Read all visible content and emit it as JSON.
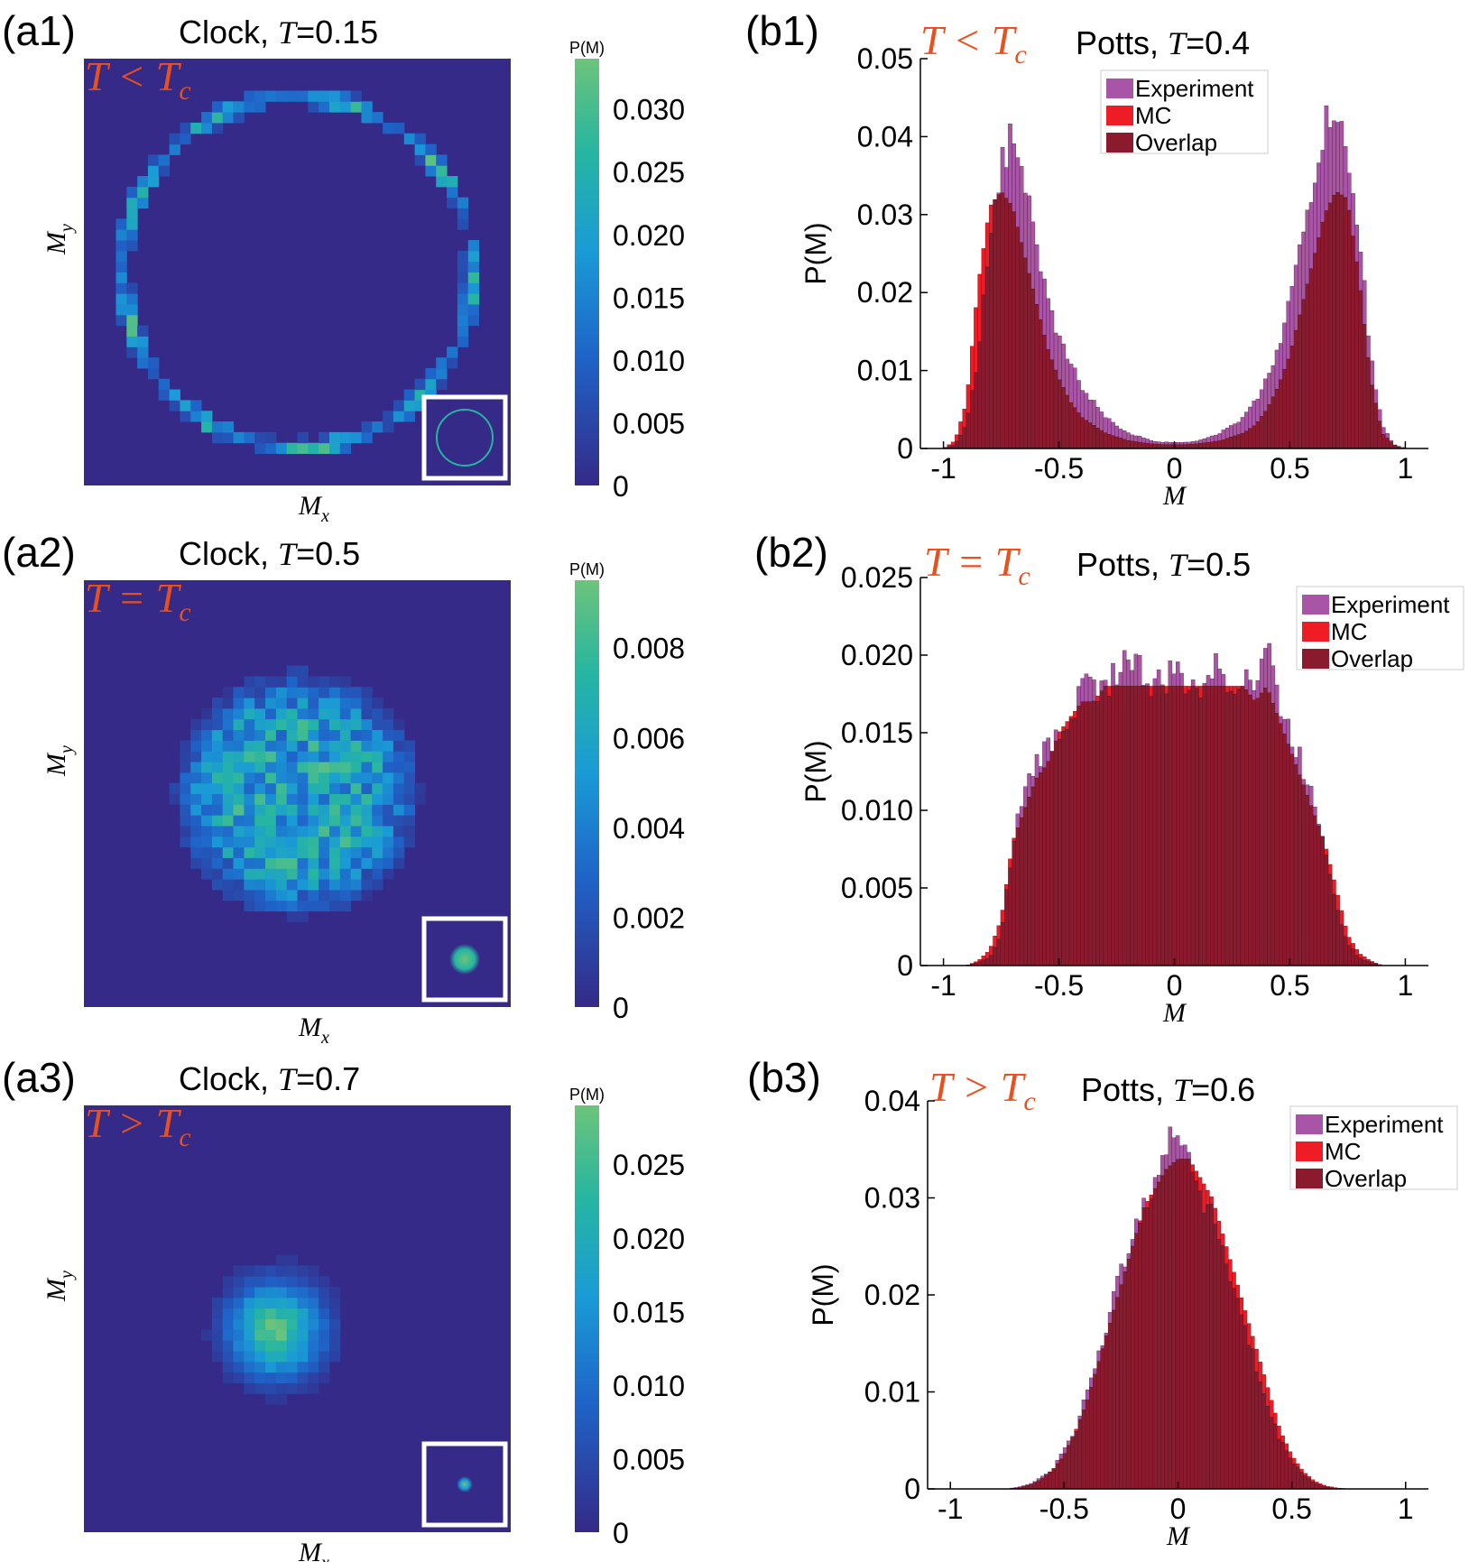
{
  "colormap": [
    "#352a87",
    "#1f63c8",
    "#1a9bd6",
    "#26b5a2",
    "#6cc47a"
  ],
  "series_colors": {
    "Experiment": "#a855a7",
    "MC": "#ee1c25",
    "Overlap": "#8b1a2e"
  },
  "heatmap_panels": [
    {
      "panel_label": "(a1)",
      "title_prefix": "Clock,",
      "title_var": "T",
      "title_value": "=0.15",
      "regime": "T < T",
      "regime_sub": "c",
      "xlabel": "M",
      "xlabel_sub": "x",
      "ylabel": "M",
      "ylabel_sub": "y",
      "colorbar_label": "P(M)",
      "colorbar_ticks": [
        "0",
        "0.005",
        "0.010",
        "0.015",
        "0.020",
        "0.025",
        "0.030"
      ],
      "colorbar_max": 0.034,
      "inset": "ring",
      "chart_data": {
        "type": "heatmap",
        "distribution": "ring",
        "description_values": {
          "max": 0.034
        }
      }
    },
    {
      "panel_label": "(a2)",
      "title_prefix": "Clock,",
      "title_var": "T",
      "title_value": "=0.5",
      "regime": "T = T",
      "regime_sub": "c",
      "xlabel": "M",
      "xlabel_sub": "x",
      "ylabel": "M",
      "ylabel_sub": "y",
      "colorbar_label": "P(M)",
      "colorbar_ticks": [
        "0",
        "0.002",
        "0.004",
        "0.006",
        "0.008"
      ],
      "colorbar_max": 0.0095,
      "inset": "disk-large",
      "chart_data": {
        "type": "heatmap",
        "distribution": "disk",
        "description_values": {
          "max": 0.0095
        }
      }
    },
    {
      "panel_label": "(a3)",
      "title_prefix": "Clock,",
      "title_var": "T",
      "title_value": "=0.7",
      "regime": "T > T",
      "regime_sub": "c",
      "xlabel": "M",
      "xlabel_sub": "x",
      "ylabel": "M",
      "ylabel_sub": "y",
      "colorbar_label": "P(M)",
      "colorbar_ticks": [
        "0",
        "0.005",
        "0.010",
        "0.015",
        "0.020",
        "0.025"
      ],
      "colorbar_max": 0.029,
      "inset": "disk-small",
      "chart_data": {
        "type": "heatmap",
        "distribution": "gaussian",
        "description_values": {
          "max": 0.029
        }
      }
    }
  ],
  "histogram_panels": [
    {
      "panel_label": "(b1)",
      "title_prefix": "Potts,",
      "title_var": "T",
      "title_value": "=0.4",
      "regime": "T < T",
      "regime_sub": "c",
      "xlabel": "M",
      "ylabel": "P(M)",
      "xticks": [
        "-1",
        "-0.5",
        "0",
        "0.5",
        "1"
      ],
      "yticks": [
        "0",
        "0.01",
        "0.02",
        "0.03",
        "0.04",
        "0.05"
      ],
      "ylim": [
        0,
        0.05
      ],
      "legend": [
        "Experiment",
        "MC",
        "Overlap"
      ],
      "chart_data": {
        "type": "bar",
        "x": [
          -1.0,
          -0.95,
          -0.9,
          -0.85,
          -0.8,
          -0.75,
          -0.7,
          -0.65,
          -0.6,
          -0.55,
          -0.5,
          -0.45,
          -0.4,
          -0.35,
          -0.3,
          -0.25,
          -0.2,
          -0.15,
          -0.1,
          -0.05,
          0,
          0.05,
          0.1,
          0.15,
          0.2,
          0.25,
          0.3,
          0.35,
          0.4,
          0.45,
          0.5,
          0.55,
          0.6,
          0.65,
          0.7,
          0.75,
          0.8,
          0.85,
          0.9,
          0.95,
          1.0
        ],
        "series": [
          {
            "name": "Experiment",
            "values": [
              0,
              0.0005,
              0.003,
              0.012,
              0.028,
              0.036,
              0.041,
              0.034,
              0.026,
              0.019,
              0.014,
              0.011,
              0.008,
              0.006,
              0.004,
              0.003,
              0.002,
              0.0015,
              0.001,
              0.0008,
              0.0008,
              0.0008,
              0.001,
              0.0015,
              0.002,
              0.003,
              0.004,
              0.006,
              0.009,
              0.013,
              0.019,
              0.026,
              0.034,
              0.041,
              0.044,
              0.036,
              0.028,
              0.012,
              0.003,
              0.0005,
              0
            ]
          },
          {
            "name": "MC",
            "values": [
              0,
              0.001,
              0.006,
              0.021,
              0.031,
              0.033,
              0.031,
              0.025,
              0.019,
              0.013,
              0.009,
              0.006,
              0.004,
              0.003,
              0.002,
              0.0015,
              0.001,
              0.0008,
              0.0006,
              0.0005,
              0.0005,
              0.0005,
              0.0006,
              0.0008,
              0.001,
              0.0015,
              0.002,
              0.003,
              0.005,
              0.008,
              0.012,
              0.018,
              0.024,
              0.03,
              0.033,
              0.032,
              0.022,
              0.009,
              0.002,
              0.0005,
              0
            ]
          }
        ]
      }
    },
    {
      "panel_label": "(b2)",
      "title_prefix": "Potts,",
      "title_var": "T",
      "title_value": "=0.5",
      "regime": "T = T",
      "regime_sub": "c",
      "xlabel": "M",
      "ylabel": "P(M)",
      "xticks": [
        "-1",
        "-0.5",
        "0",
        "0.5",
        "1"
      ],
      "yticks": [
        "0",
        "0.005",
        "0.010",
        "0.015",
        "0.020",
        "0.025"
      ],
      "ylim": [
        0,
        0.025
      ],
      "legend": [
        "Experiment",
        "MC",
        "Overlap"
      ],
      "chart_data": {
        "type": "bar",
        "x": [
          -1.0,
          -0.95,
          -0.9,
          -0.85,
          -0.8,
          -0.75,
          -0.7,
          -0.65,
          -0.6,
          -0.55,
          -0.5,
          -0.45,
          -0.4,
          -0.35,
          -0.3,
          -0.25,
          -0.2,
          -0.15,
          -0.1,
          -0.05,
          0,
          0.05,
          0.1,
          0.15,
          0.2,
          0.25,
          0.3,
          0.35,
          0.4,
          0.45,
          0.5,
          0.55,
          0.6,
          0.65,
          0.7,
          0.75,
          0.8,
          0.85,
          0.9,
          0.95,
          1.0
        ],
        "series": [
          {
            "name": "Experiment",
            "values": [
              0,
              0,
              0,
              0.0002,
              0.0005,
              0.002,
              0.008,
              0.011,
              0.013,
              0.014,
              0.015,
              0.016,
              0.018,
              0.018,
              0.018,
              0.019,
              0.02,
              0.019,
              0.018,
              0.018,
              0.019,
              0.018,
              0.018,
              0.019,
              0.019,
              0.018,
              0.019,
              0.018,
              0.021,
              0.017,
              0.015,
              0.013,
              0.011,
              0.008,
              0.004,
              0.0015,
              0.0005,
              0.0002,
              0,
              0,
              0
            ]
          },
          {
            "name": "MC",
            "values": [
              0,
              0,
              0,
              0.0003,
              0.001,
              0.003,
              0.008,
              0.01,
              0.012,
              0.013,
              0.015,
              0.016,
              0.017,
              0.017,
              0.018,
              0.018,
              0.018,
              0.018,
              0.018,
              0.018,
              0.018,
              0.018,
              0.018,
              0.018,
              0.018,
              0.018,
              0.018,
              0.017,
              0.018,
              0.016,
              0.014,
              0.012,
              0.01,
              0.008,
              0.005,
              0.002,
              0.0008,
              0.0003,
              0,
              0,
              0
            ]
          }
        ]
      }
    },
    {
      "panel_label": "(b3)",
      "title_prefix": "Potts,",
      "title_var": "T",
      "title_value": "=0.6",
      "regime": "T > T",
      "regime_sub": "c",
      "xlabel": "M",
      "ylabel": "P(M)",
      "xticks": [
        "-1",
        "-0.5",
        "0",
        "0.5",
        "1"
      ],
      "yticks": [
        "0",
        "0.01",
        "0.02",
        "0.03",
        "0.04"
      ],
      "ylim": [
        0,
        0.04
      ],
      "legend": [
        "Experiment",
        "MC",
        "Overlap"
      ],
      "chart_data": {
        "type": "bar",
        "x": [
          -1.0,
          -0.95,
          -0.9,
          -0.85,
          -0.8,
          -0.75,
          -0.7,
          -0.65,
          -0.6,
          -0.55,
          -0.5,
          -0.45,
          -0.4,
          -0.35,
          -0.3,
          -0.25,
          -0.2,
          -0.15,
          -0.1,
          -0.05,
          0,
          0.05,
          0.1,
          0.15,
          0.2,
          0.25,
          0.3,
          0.35,
          0.4,
          0.45,
          0.5,
          0.55,
          0.6,
          0.65,
          0.7,
          0.75,
          0.8,
          0.85,
          0.9,
          0.95,
          1.0
        ],
        "series": [
          {
            "name": "Experiment",
            "values": [
              0,
              0,
              0,
              0,
              0,
              0,
              0.0002,
              0.0005,
              0.0012,
              0.002,
              0.004,
              0.006,
              0.01,
              0.014,
              0.018,
              0.022,
              0.027,
              0.03,
              0.032,
              0.034,
              0.038,
              0.034,
              0.031,
              0.028,
              0.025,
              0.02,
              0.016,
              0.012,
              0.008,
              0.005,
              0.003,
              0.0015,
              0.0006,
              0.0002,
              0,
              0,
              0,
              0,
              0,
              0,
              0
            ]
          },
          {
            "name": "MC",
            "values": [
              0,
              0,
              0,
              0,
              0,
              0,
              0.0001,
              0.0004,
              0.001,
              0.002,
              0.0035,
              0.006,
              0.009,
              0.013,
              0.017,
              0.021,
              0.025,
              0.029,
              0.031,
              0.033,
              0.034,
              0.034,
              0.032,
              0.03,
              0.026,
              0.022,
              0.018,
              0.014,
              0.01,
              0.006,
              0.0035,
              0.0018,
              0.0008,
              0.0003,
              0.0001,
              0,
              0,
              0,
              0,
              0,
              0
            ]
          }
        ]
      }
    }
  ]
}
